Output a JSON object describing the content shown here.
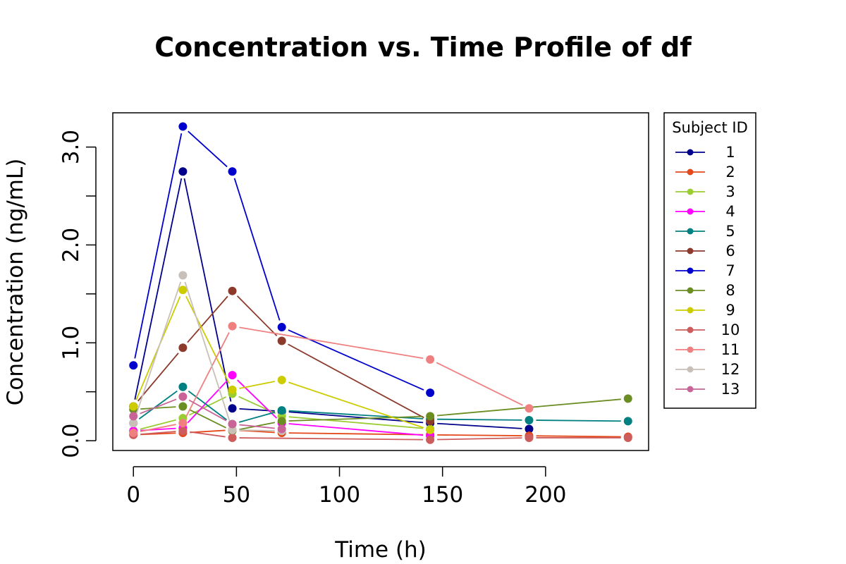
{
  "chart_data": {
    "type": "line",
    "title": "Concentration vs. Time Profile of df",
    "xlabel": "Time (h)",
    "ylabel": "Concentration (ng/mL)",
    "xlim": [
      -10,
      250
    ],
    "ylim": [
      -0.1,
      3.35
    ],
    "x_ticks": [
      0,
      50,
      100,
      150,
      200
    ],
    "x_tick_labels": [
      "0",
      "50",
      "100",
      "150",
      "200"
    ],
    "y_ticks": [
      0.0,
      0.5,
      1.0,
      1.5,
      2.0,
      2.5,
      3.0
    ],
    "y_tick_labels": [
      "0.0",
      "",
      "1.0",
      "",
      "2.0",
      "",
      "3.0"
    ],
    "grid": false,
    "legend": {
      "title": "Subject ID",
      "placement": "outside-right"
    },
    "series": [
      {
        "name": "1",
        "color": "#00008B",
        "x": [
          0,
          24,
          48,
          72,
          144,
          192
        ],
        "y": [
          0.35,
          2.75,
          0.33,
          0.3,
          0.18,
          0.12
        ]
      },
      {
        "name": "2",
        "color": "#E4491C",
        "x": [
          0,
          24,
          48,
          72,
          144,
          192,
          240
        ],
        "y": [
          0.06,
          0.08,
          0.11,
          0.08,
          0.06,
          0.05,
          0.04
        ]
      },
      {
        "name": "3",
        "color": "#9ACD32",
        "x": [
          0,
          24,
          48,
          72,
          144
        ],
        "y": [
          0.1,
          0.23,
          0.48,
          0.25,
          0.12
        ]
      },
      {
        "name": "4",
        "color": "#FF00FF",
        "x": [
          0,
          24,
          48,
          72,
          144
        ],
        "y": [
          0.1,
          0.13,
          0.67,
          0.18,
          0.05
        ]
      },
      {
        "name": "5",
        "color": "#008080",
        "x": [
          0,
          24,
          48,
          72,
          144,
          192,
          240
        ],
        "y": [
          0.18,
          0.55,
          0.17,
          0.31,
          0.22,
          0.21,
          0.2
        ]
      },
      {
        "name": "6",
        "color": "#8B3A2B",
        "x": [
          0,
          24,
          48,
          72,
          144
        ],
        "y": [
          0.35,
          0.95,
          1.53,
          1.02,
          0.2
        ]
      },
      {
        "name": "7",
        "color": "#0000CD",
        "x": [
          0,
          24,
          48,
          72,
          144
        ],
        "y": [
          0.77,
          3.21,
          2.75,
          1.16,
          0.49
        ]
      },
      {
        "name": "8",
        "color": "#6B8E23",
        "x": [
          0,
          24,
          48,
          72,
          144,
          240
        ],
        "y": [
          0.32,
          0.35,
          0.1,
          0.2,
          0.25,
          0.43
        ]
      },
      {
        "name": "9",
        "color": "#CCCC00",
        "x": [
          0,
          24,
          48,
          72,
          144
        ],
        "y": [
          0.35,
          1.54,
          0.52,
          0.62,
          0.11
        ]
      },
      {
        "name": "10",
        "color": "#CD5C5C",
        "x": [
          0,
          24,
          48,
          144,
          192,
          240
        ],
        "y": [
          0.06,
          0.1,
          0.03,
          0.01,
          0.03,
          0.03
        ]
      },
      {
        "name": "11",
        "color": "#F08080",
        "x": [
          0,
          24,
          48,
          144,
          192
        ],
        "y": [
          0.08,
          0.18,
          1.17,
          0.83,
          0.33
        ]
      },
      {
        "name": "12",
        "color": "#C8C0B8",
        "x": [
          0,
          24,
          48,
          72
        ],
        "y": [
          0.18,
          1.69,
          0.11,
          0.1
        ]
      },
      {
        "name": "13",
        "color": "#C86496",
        "x": [
          0,
          24,
          48,
          72
        ],
        "y": [
          0.25,
          0.45,
          0.17,
          0.12
        ]
      }
    ]
  }
}
